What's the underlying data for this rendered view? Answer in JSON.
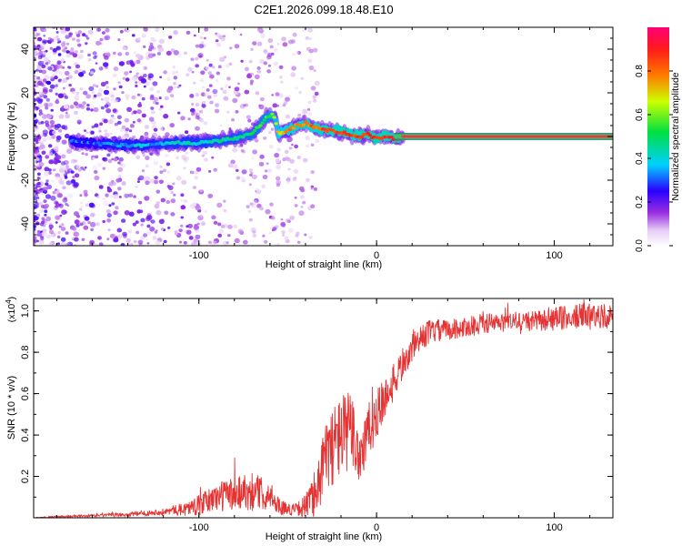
{
  "title": "C2E1.2026.099.18.48.E10",
  "chart_data": [
    {
      "type": "heatmap",
      "title": "C2E1.2026.099.18.48.E10",
      "xlabel": "Height of straight line (km)",
      "ylabel": "Frequency (Hz)",
      "xlim": [
        -193,
        133
      ],
      "ylim": [
        -50,
        50
      ],
      "xticks": [
        -100,
        0,
        100
      ],
      "xtick_labels": [
        "-100",
        "0",
        "100"
      ],
      "yticks": [
        -40,
        -20,
        0,
        20,
        40
      ],
      "ytick_labels": [
        "-40",
        "-20",
        "0",
        "20",
        "40"
      ],
      "colorbar": {
        "label": "Normalized spectral amplitude",
        "ticks": [
          0.0,
          0.2,
          0.4,
          0.6,
          0.8
        ],
        "tick_labels": [
          "0.0",
          "0.2",
          "0.4",
          "0.6",
          "0.8"
        ],
        "range": [
          0,
          1
        ]
      },
      "ridge": {
        "x": [
          -175,
          -160,
          -145,
          -130,
          -115,
          -100,
          -90,
          -80,
          -70,
          -62,
          -58,
          -55,
          -50,
          -45,
          -40,
          -35,
          -30,
          -25,
          -20,
          -15,
          -10,
          -5,
          0,
          5,
          10,
          20,
          40,
          80,
          133
        ],
        "frequency": [
          -2,
          -3,
          -4,
          -4,
          -3,
          -3,
          -2,
          -1,
          1,
          9,
          10,
          1,
          3,
          5,
          6,
          4,
          3,
          3,
          2,
          1,
          0,
          1,
          -1,
          0,
          -1,
          0,
          0,
          0,
          0
        ],
        "amplitude": [
          0.3,
          0.3,
          0.35,
          0.35,
          0.4,
          0.4,
          0.45,
          0.45,
          0.5,
          0.55,
          0.6,
          0.7,
          0.75,
          0.8,
          0.8,
          0.8,
          0.85,
          0.85,
          0.85,
          0.85,
          0.85,
          0.9,
          0.9,
          0.9,
          0.9,
          0.95,
          0.95,
          0.95,
          0.95
        ]
      }
    },
    {
      "type": "line",
      "xlabel": "Height of straight line (km)",
      "ylabel": "SNR (10 * v/v)",
      "scale_label": "(x10",
      "scale_exponent": "4",
      "xlim": [
        -193,
        133
      ],
      "ylim": [
        0,
        1.06
      ],
      "xticks": [
        -100,
        0,
        100
      ],
      "xtick_labels": [
        "-100",
        "0",
        "100"
      ],
      "yticks": [
        0.2,
        0.4,
        0.6,
        0.8,
        1.0
      ],
      "ytick_labels": [
        "0.2",
        "0.4",
        "0.6",
        "0.8",
        "1.0"
      ],
      "series": [
        {
          "name": "SNR",
          "color": "#e53333",
          "x": [
            -193,
            -180,
            -160,
            -140,
            -120,
            -110,
            -100,
            -95,
            -90,
            -85,
            -80,
            -75,
            -70,
            -65,
            -60,
            -55,
            -50,
            -45,
            -40,
            -35,
            -32,
            -28,
            -25,
            -20,
            -15,
            -12,
            -10,
            -5,
            0,
            5,
            10,
            15,
            20,
            25,
            30,
            40,
            50,
            60,
            70,
            80,
            90,
            100,
            110,
            120,
            133
          ],
          "y": [
            0.0,
            0.005,
            0.01,
            0.015,
            0.03,
            0.04,
            0.06,
            0.08,
            0.1,
            0.11,
            0.12,
            0.13,
            0.13,
            0.12,
            0.1,
            0.06,
            0.04,
            0.04,
            0.06,
            0.1,
            0.2,
            0.3,
            0.35,
            0.4,
            0.42,
            0.38,
            0.3,
            0.4,
            0.5,
            0.58,
            0.66,
            0.75,
            0.82,
            0.87,
            0.9,
            0.91,
            0.92,
            0.94,
            0.94,
            0.95,
            0.95,
            0.96,
            0.97,
            0.98,
            0.97
          ],
          "noise": [
            0.002,
            0.004,
            0.006,
            0.01,
            0.015,
            0.03,
            0.05,
            0.06,
            0.07,
            0.08,
            0.09,
            0.09,
            0.1,
            0.08,
            0.06,
            0.04,
            0.03,
            0.03,
            0.06,
            0.1,
            0.15,
            0.18,
            0.2,
            0.2,
            0.2,
            0.18,
            0.18,
            0.15,
            0.12,
            0.1,
            0.09,
            0.08,
            0.07,
            0.06,
            0.06,
            0.05,
            0.05,
            0.05,
            0.05,
            0.05,
            0.05,
            0.06,
            0.06,
            0.06,
            0.06
          ]
        }
      ]
    }
  ]
}
